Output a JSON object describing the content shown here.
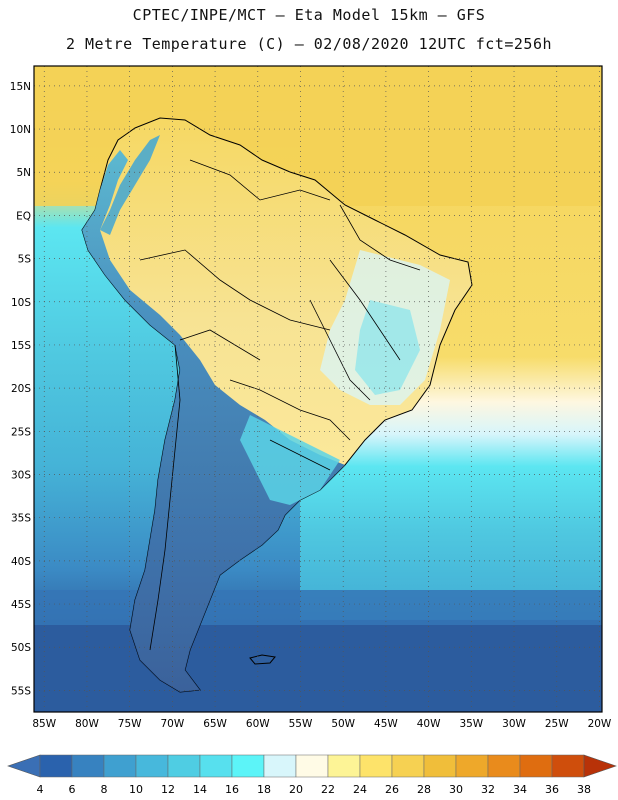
{
  "header": {
    "title_line1": "CPTEC/INPE/MCT –  Eta Model 15km – GFS",
    "title_line2": "2 Metre Temperature (C) – 02/08/2020 12UTC fct=256h"
  },
  "map": {
    "lat_labels": [
      "15N",
      "10N",
      "5N",
      "EQ",
      "5S",
      "10S",
      "15S",
      "20S",
      "25S",
      "30S",
      "35S",
      "40S",
      "45S",
      "50S",
      "55S"
    ],
    "lon_labels": [
      "85W",
      "80W",
      "75W",
      "70W",
      "65W",
      "60W",
      "55W",
      "50W",
      "45W",
      "40W",
      "35W",
      "30W",
      "25W",
      "20W"
    ],
    "lat_values": [
      15,
      10,
      5,
      0,
      -5,
      -10,
      -15,
      -20,
      -25,
      -30,
      -35,
      -40,
      -45,
      -50,
      -55
    ],
    "lon_values": [
      -85,
      -80,
      -75,
      -70,
      -65,
      -60,
      -55,
      -50,
      -45,
      -40,
      -35,
      -30,
      -25,
      -20
    ]
  },
  "legend": {
    "labels": [
      "4",
      "6",
      "8",
      "10",
      "12",
      "14",
      "16",
      "18",
      "20",
      "22",
      "24",
      "26",
      "28",
      "30",
      "32",
      "34",
      "36",
      "38"
    ],
    "colors": [
      "#3a6fb5",
      "#2a62ad",
      "#3782c0",
      "#3fa0d0",
      "#47b8dc",
      "#4fcde3",
      "#57e0ee",
      "#5cf4f8",
      "#d8f6fb",
      "#fffbe6",
      "#fdf496",
      "#fde36a",
      "#f6d152",
      "#f0be3a",
      "#eea82a",
      "#e98b1c",
      "#df6d10",
      "#cf4e0c",
      "#b83208"
    ]
  },
  "style": {
    "ocean_south": "#2f5f9f",
    "ocean_mid": "#4aa8cf",
    "ocean_cyan": "#5ce0ec",
    "tropical_ocean": "#f5d564",
    "land_warm": "#f7e59a",
    "coast_line": "#000000"
  }
}
